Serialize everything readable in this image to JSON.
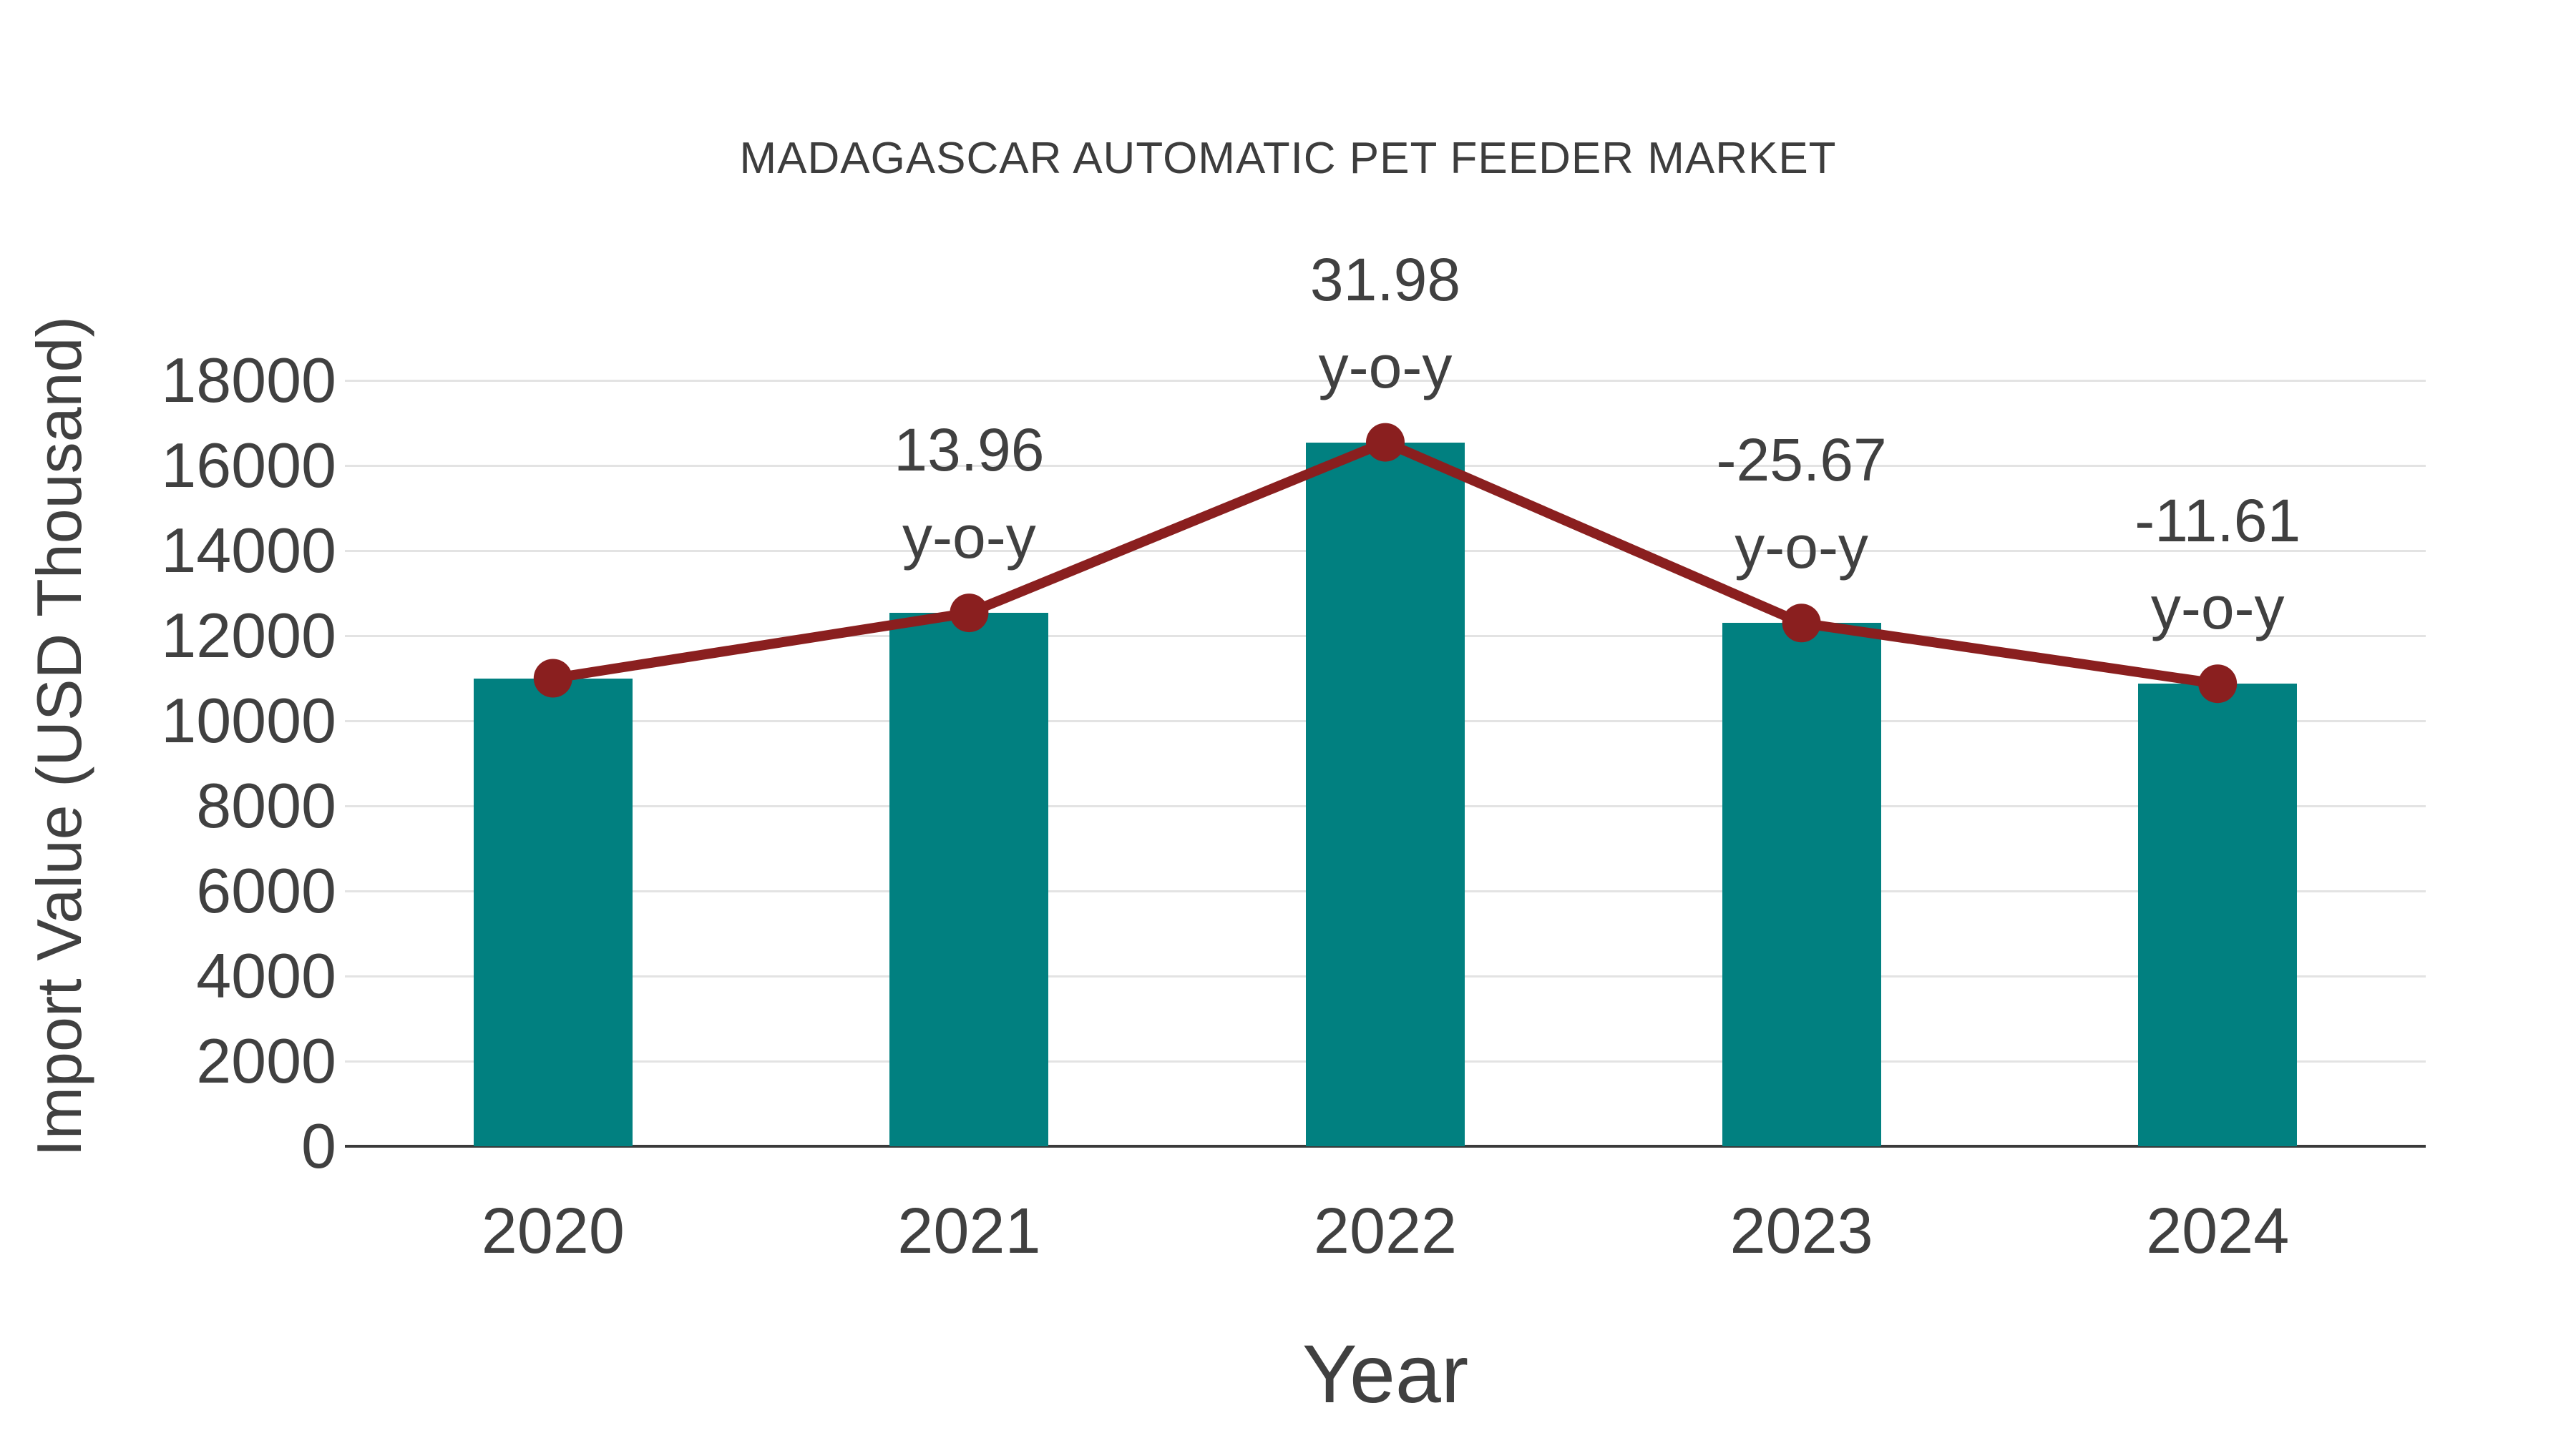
{
  "chart_data": {
    "type": "bar",
    "subtype": "bar-with-line-overlay",
    "title": "MADAGASCAR AUTOMATIC PET FEEDER MARKET",
    "xlabel": "Year",
    "ylabel": "Import Value (USD Thousand)",
    "categories": [
      "2020",
      "2021",
      "2022",
      "2023",
      "2024"
    ],
    "series": [
      {
        "name": "Import Value (USD Thousand)",
        "type": "bar",
        "values": [
          11000,
          12536,
          16545,
          12298,
          10870
        ]
      },
      {
        "name": "y-o-y",
        "type": "line",
        "plotted_at": [
          11000,
          12536,
          16545,
          12298,
          10870
        ],
        "yoy_percent": [
          null,
          13.96,
          31.98,
          -25.67,
          -11.61
        ]
      }
    ],
    "annotations": [
      {
        "category": "2021",
        "lines": [
          "13.96",
          "y-o-y"
        ]
      },
      {
        "category": "2022",
        "lines": [
          "31.98",
          "y-o-y"
        ]
      },
      {
        "category": "2023",
        "lines": [
          "-25.67",
          "y-o-y"
        ]
      },
      {
        "category": "2024",
        "lines": [
          "-11.61",
          "y-o-y"
        ]
      }
    ],
    "y_axis": {
      "min": 0,
      "max": 18000,
      "tick_step": 2000,
      "ticks": [
        "0",
        "2000",
        "4000",
        "6000",
        "8000",
        "10000",
        "12000",
        "14000",
        "16000",
        "18000"
      ]
    },
    "ylim": [
      0,
      18000
    ],
    "grid": "horizontal",
    "legend": "none",
    "colors": {
      "bar": "#018080",
      "line": "#8a1f1f",
      "text": "#404040",
      "grid": "#e3e3e3",
      "axis": "#3a3a3a",
      "background": "#ffffff"
    }
  }
}
